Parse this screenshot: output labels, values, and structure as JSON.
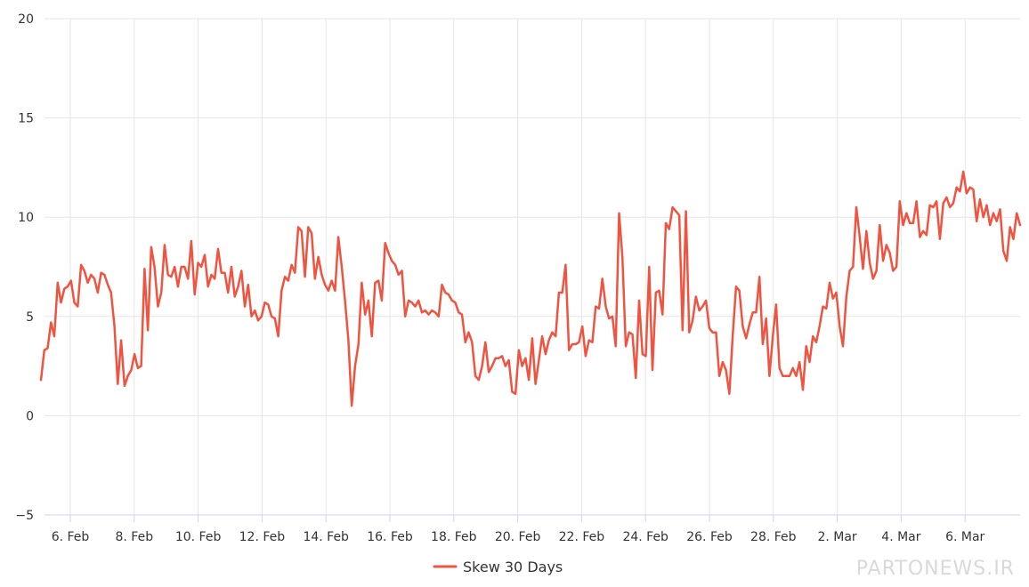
{
  "chart_data": {
    "type": "line",
    "xlabel": "",
    "ylabel": "",
    "ylim": [
      -5,
      20
    ],
    "ytick_labels": [
      "−5",
      "0",
      "5",
      "10",
      "15",
      "20"
    ],
    "ytick_values": [
      -5,
      0,
      5,
      10,
      15,
      20
    ],
    "xtick_labels": [
      "6. Feb",
      "8. Feb",
      "10. Feb",
      "12. Feb",
      "14. Feb",
      "16. Feb",
      "18. Feb",
      "20. Feb",
      "22. Feb",
      "24. Feb",
      "26. Feb",
      "28. Feb",
      "2. Mar",
      "4. Mar",
      "6. Mar"
    ],
    "xtick_positions": [
      0,
      2,
      4,
      6,
      8,
      10,
      12,
      14,
      16,
      18,
      20,
      22,
      24,
      26,
      28
    ],
    "x_start_label": "5. Feb",
    "x_end_label": "7. Mar",
    "grid": true,
    "legend_position": "bottom-center",
    "colors": {
      "series": "#f05440",
      "grid": "#e6e6e6",
      "axis": "#ccd6eb"
    },
    "series": [
      {
        "name": "Skew 30 Days",
        "values": [
          1.8,
          3.3,
          3.4,
          4.7,
          4.0,
          6.7,
          5.7,
          6.4,
          6.5,
          6.8,
          5.7,
          5.5,
          7.6,
          7.3,
          6.7,
          7.1,
          6.9,
          6.2,
          7.2,
          7.1,
          6.6,
          6.2,
          4.5,
          1.6,
          3.8,
          1.5,
          2.0,
          2.3,
          3.1,
          2.4,
          2.5,
          7.4,
          4.3,
          8.5,
          7.5,
          5.5,
          6.2,
          8.6,
          7.1,
          7.0,
          7.5,
          6.5,
          7.5,
          7.5,
          6.9,
          8.8,
          6.1,
          7.7,
          7.5,
          8.1,
          6.5,
          7.1,
          6.9,
          8.4,
          7.2,
          7.2,
          6.2,
          7.5,
          6.0,
          6.5,
          7.3,
          5.5,
          6.6,
          5.0,
          5.3,
          4.8,
          5.0,
          5.7,
          5.6,
          5.0,
          4.9,
          4.0,
          6.3,
          7.0,
          6.8,
          7.6,
          7.2,
          9.5,
          9.3,
          7.0,
          9.5,
          9.2,
          6.9,
          8.0,
          7.1,
          6.6,
          6.3,
          6.8,
          6.3,
          9.0,
          7.5,
          5.8,
          3.8,
          0.5,
          2.5,
          3.6,
          6.7,
          5.1,
          5.8,
          4.0,
          6.7,
          6.8,
          5.8,
          8.7,
          8.2,
          7.8,
          7.6,
          7.1,
          7.3,
          5.0,
          5.8,
          5.7,
          5.5,
          5.8,
          5.2,
          5.3,
          5.1,
          5.3,
          5.2,
          5.0,
          6.6,
          6.2,
          6.1,
          5.8,
          5.7,
          5.2,
          5.1,
          3.7,
          4.2,
          3.7,
          2.0,
          1.8,
          2.5,
          3.7,
          2.2,
          2.5,
          2.9,
          2.9,
          3.0,
          2.5,
          2.8,
          1.2,
          1.1,
          3.3,
          2.5,
          2.9,
          1.8,
          3.9,
          1.6,
          2.8,
          4.0,
          3.1,
          3.8,
          4.2,
          4.0,
          6.2,
          6.2,
          7.6,
          3.3,
          3.6,
          3.6,
          3.7,
          4.5,
          3.0,
          3.8,
          3.7,
          5.5,
          5.4,
          6.9,
          5.5,
          4.9,
          5.0,
          3.5,
          10.2,
          8.0,
          3.5,
          4.2,
          4.1,
          1.9,
          5.8,
          3.1,
          3.0,
          7.5,
          2.3,
          6.2,
          6.3,
          5.1,
          9.7,
          9.4,
          10.5,
          10.3,
          10.1,
          4.3,
          10.3,
          4.2,
          4.8,
          6.0,
          5.3,
          5.5,
          5.8,
          4.4,
          4.2,
          4.2,
          2.0,
          2.7,
          2.3,
          1.1,
          4.0,
          6.5,
          6.3,
          4.5,
          3.9,
          4.6,
          5.2,
          5.2,
          7.0,
          3.6,
          4.9,
          2.0,
          4.0,
          5.6,
          2.4,
          2.0,
          2.0,
          2.0,
          2.4,
          2.0,
          2.7,
          1.3,
          3.5,
          2.7,
          4.0,
          3.7,
          4.5,
          5.5,
          5.4,
          6.7,
          5.9,
          6.2,
          4.5,
          3.5,
          6.0,
          7.3,
          7.5,
          10.5,
          9.0,
          7.4,
          9.3,
          7.7,
          6.9,
          7.3,
          9.6,
          7.8,
          8.6,
          8.2,
          7.3,
          7.5,
          10.8,
          9.6,
          10.2,
          9.7,
          9.7,
          10.8,
          9.0,
          9.3,
          9.1,
          10.6,
          10.5,
          10.8,
          8.9,
          10.7,
          11.0,
          10.5,
          10.7,
          11.5,
          11.3,
          12.3,
          11.2,
          11.5,
          11.4,
          9.8,
          10.9,
          10.0,
          10.6,
          9.6,
          10.2,
          9.8,
          10.4,
          8.3,
          7.8,
          9.5,
          8.9,
          10.2,
          9.6
        ]
      }
    ]
  },
  "watermark": "PARTONEWS.IR"
}
